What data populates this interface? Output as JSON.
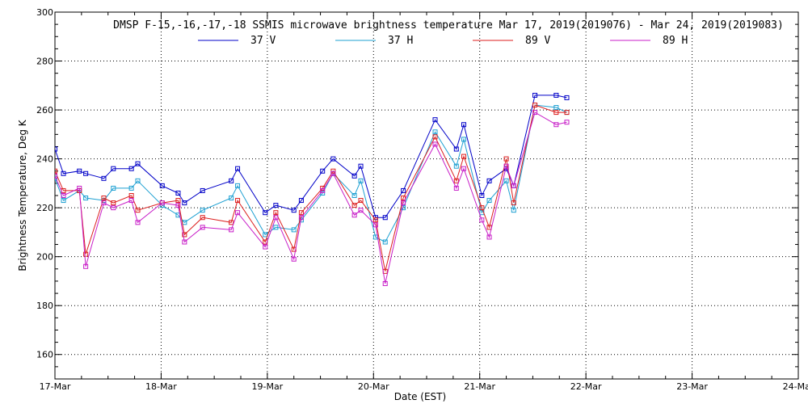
{
  "chart_data": {
    "type": "line",
    "title": "DMSP F-15,-16,-17,-18 SSMIS microwave brightness temperature Mar 17, 2019(2019076) - Mar 24, 2019(2019083)",
    "xlabel": "Date (EST)",
    "ylabel": "Brightness Temperature, Deg K",
    "xlim": [
      0,
      7
    ],
    "ylim": [
      150,
      300
    ],
    "x_ticks": [
      {
        "value": 0,
        "label": "17-Mar"
      },
      {
        "value": 1,
        "label": "18-Mar"
      },
      {
        "value": 2,
        "label": "19-Mar"
      },
      {
        "value": 3,
        "label": "20-Mar"
      },
      {
        "value": 4,
        "label": "21-Mar"
      },
      {
        "value": 5,
        "label": "22-Mar"
      },
      {
        "value": 6,
        "label": "23-Mar"
      },
      {
        "value": 7,
        "label": "24-Mar"
      }
    ],
    "y_ticks": [
      160,
      180,
      200,
      220,
      240,
      260,
      280,
      300
    ],
    "grid": true,
    "legend_position": "top-center",
    "series": [
      {
        "name": "37 V",
        "color": "#0000c8",
        "points": [
          [
            0.0,
            244
          ],
          [
            0.08,
            234
          ],
          [
            0.23,
            235
          ],
          [
            0.29,
            234
          ],
          [
            0.46,
            232
          ],
          [
            0.55,
            236
          ],
          [
            0.72,
            236
          ],
          [
            0.78,
            238
          ],
          [
            1.01,
            229
          ],
          [
            1.16,
            226
          ],
          [
            1.22,
            222
          ],
          [
            1.39,
            227
          ],
          [
            1.66,
            231
          ],
          [
            1.72,
            236
          ],
          [
            1.98,
            218
          ],
          [
            2.08,
            221
          ],
          [
            2.25,
            219
          ],
          [
            2.32,
            223
          ],
          [
            2.52,
            235
          ],
          [
            2.62,
            240
          ],
          [
            2.82,
            233
          ],
          [
            2.88,
            237
          ],
          [
            3.02,
            216
          ],
          [
            3.11,
            216
          ],
          [
            3.28,
            227
          ],
          [
            3.58,
            256
          ],
          [
            3.78,
            244
          ],
          [
            3.85,
            254
          ],
          [
            4.02,
            225
          ],
          [
            4.09,
            231
          ],
          [
            4.25,
            236
          ],
          [
            4.32,
            229
          ],
          [
            4.52,
            266
          ],
          [
            4.72,
            266
          ],
          [
            4.82,
            265
          ]
        ]
      },
      {
        "name": "37 H",
        "color": "#1ea0d2",
        "points": [
          [
            0.0,
            232
          ],
          [
            0.08,
            223
          ],
          [
            0.23,
            227
          ],
          [
            0.29,
            224
          ],
          [
            0.46,
            223
          ],
          [
            0.55,
            228
          ],
          [
            0.72,
            228
          ],
          [
            0.78,
            231
          ],
          [
            1.01,
            221
          ],
          [
            1.16,
            217
          ],
          [
            1.22,
            214
          ],
          [
            1.39,
            219
          ],
          [
            1.66,
            224
          ],
          [
            1.72,
            229
          ],
          [
            1.98,
            209
          ],
          [
            2.08,
            212
          ],
          [
            2.25,
            211
          ],
          [
            2.32,
            215
          ],
          [
            2.52,
            226
          ],
          [
            2.62,
            234
          ],
          [
            2.82,
            225
          ],
          [
            2.88,
            231
          ],
          [
            3.02,
            208
          ],
          [
            3.11,
            206
          ],
          [
            3.28,
            220
          ],
          [
            3.58,
            251
          ],
          [
            3.78,
            237
          ],
          [
            3.85,
            248
          ],
          [
            4.02,
            218
          ],
          [
            4.09,
            223
          ],
          [
            4.25,
            231
          ],
          [
            4.32,
            219
          ],
          [
            4.52,
            262
          ],
          [
            4.72,
            261
          ],
          [
            4.82,
            259
          ]
        ]
      },
      {
        "name": "89 V",
        "color": "#dc1e1e",
        "points": [
          [
            0.0,
            235
          ],
          [
            0.08,
            227
          ],
          [
            0.23,
            227
          ],
          [
            0.29,
            201
          ],
          [
            0.46,
            224
          ],
          [
            0.55,
            222
          ],
          [
            0.72,
            225
          ],
          [
            0.78,
            219
          ],
          [
            1.01,
            222
          ],
          [
            1.16,
            223
          ],
          [
            1.22,
            209
          ],
          [
            1.39,
            216
          ],
          [
            1.66,
            214
          ],
          [
            1.72,
            223
          ],
          [
            1.98,
            206
          ],
          [
            2.08,
            218
          ],
          [
            2.25,
            203
          ],
          [
            2.32,
            218
          ],
          [
            2.52,
            228
          ],
          [
            2.62,
            235
          ],
          [
            2.82,
            221
          ],
          [
            2.88,
            223
          ],
          [
            3.02,
            215
          ],
          [
            3.11,
            194
          ],
          [
            3.28,
            224
          ],
          [
            3.58,
            249
          ],
          [
            3.78,
            231
          ],
          [
            3.85,
            241
          ],
          [
            4.02,
            220
          ],
          [
            4.09,
            212
          ],
          [
            4.25,
            240
          ],
          [
            4.32,
            222
          ],
          [
            4.52,
            262
          ],
          [
            4.72,
            259
          ],
          [
            4.82,
            259
          ]
        ]
      },
      {
        "name": "89 H",
        "color": "#c81ec8",
        "points": [
          [
            0.0,
            233
          ],
          [
            0.08,
            225
          ],
          [
            0.23,
            228
          ],
          [
            0.29,
            196
          ],
          [
            0.46,
            222
          ],
          [
            0.55,
            220
          ],
          [
            0.72,
            223
          ],
          [
            0.78,
            214
          ],
          [
            1.01,
            222
          ],
          [
            1.16,
            221
          ],
          [
            1.22,
            206
          ],
          [
            1.39,
            212
          ],
          [
            1.66,
            211
          ],
          [
            1.72,
            218
          ],
          [
            1.98,
            204
          ],
          [
            2.08,
            216
          ],
          [
            2.25,
            199
          ],
          [
            2.32,
            216
          ],
          [
            2.52,
            227
          ],
          [
            2.62,
            234
          ],
          [
            2.82,
            217
          ],
          [
            2.88,
            219
          ],
          [
            3.02,
            213
          ],
          [
            3.11,
            189
          ],
          [
            3.28,
            222
          ],
          [
            3.58,
            246
          ],
          [
            3.78,
            228
          ],
          [
            3.85,
            236
          ],
          [
            4.02,
            215
          ],
          [
            4.09,
            208
          ],
          [
            4.25,
            237
          ],
          [
            4.32,
            229
          ],
          [
            4.52,
            259
          ],
          [
            4.72,
            254
          ],
          [
            4.82,
            255
          ]
        ]
      }
    ]
  }
}
